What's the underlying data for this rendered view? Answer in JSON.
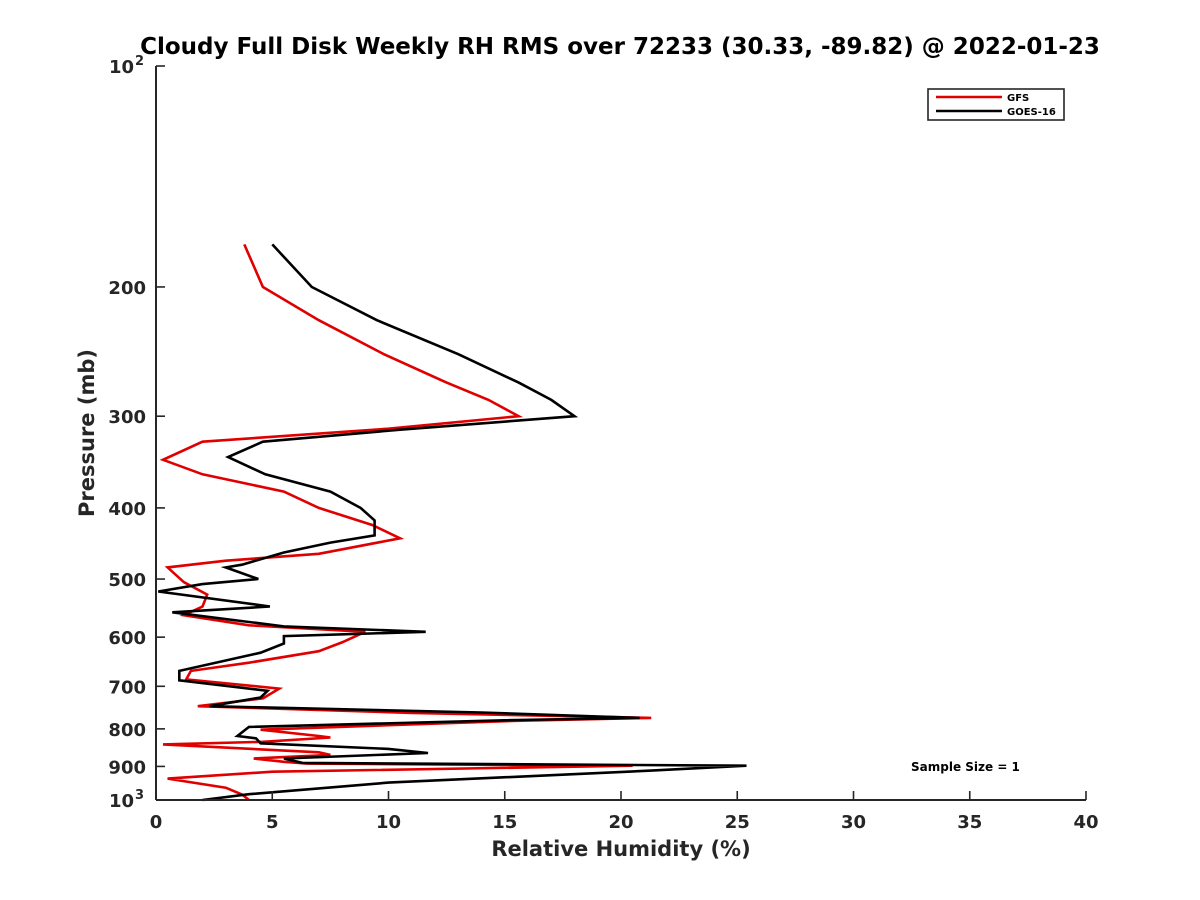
{
  "chart_data": {
    "type": "line",
    "title": "Cloudy Full Disk Weekly RH RMS over 72233 (30.33, -89.82) @ 2022-01-23",
    "xlabel": "Relative Humidity (%)",
    "ylabel": "Pressure (mb)",
    "xlim": [
      0,
      40
    ],
    "ylim": [
      100,
      1000
    ],
    "yscale": "log",
    "y_reversed": true,
    "x_ticks": [
      0,
      5,
      10,
      15,
      20,
      25,
      30,
      35,
      40
    ],
    "x_tick_labels": [
      "0",
      "5",
      "10",
      "15",
      "20",
      "25",
      "30",
      "35",
      "40"
    ],
    "y_ticks": [
      200,
      300,
      400,
      500,
      600,
      700,
      800,
      900
    ],
    "y_tick_labels": [
      "200",
      "300",
      "400",
      "500",
      "600",
      "700",
      "800",
      "900"
    ],
    "y_tick_top": {
      "base": "10",
      "exp": "2",
      "value": 100
    },
    "y_tick_bottom": {
      "base": "10",
      "exp": "3",
      "value": 1000
    },
    "grid": false,
    "legend_position": "top-right",
    "annotation": "Sample Size = 1",
    "series": [
      {
        "name": "GFS",
        "color": "#e00000",
        "points": [
          [
            3.8,
            175
          ],
          [
            4.6,
            200
          ],
          [
            7.0,
            222
          ],
          [
            9.8,
            247
          ],
          [
            12.5,
            270
          ],
          [
            14.3,
            285
          ],
          [
            15.6,
            300
          ],
          [
            10.0,
            312
          ],
          [
            2.0,
            325
          ],
          [
            0.3,
            344
          ],
          [
            2.0,
            360
          ],
          [
            5.5,
            380
          ],
          [
            7.0,
            400
          ],
          [
            9.3,
            422
          ],
          [
            10.5,
            440
          ],
          [
            7.0,
            462
          ],
          [
            3.0,
            472
          ],
          [
            0.5,
            482
          ],
          [
            1.2,
            505
          ],
          [
            2.2,
            525
          ],
          [
            2.0,
            545
          ],
          [
            1.2,
            560
          ],
          [
            4.0,
            578
          ],
          [
            9.0,
            590
          ],
          [
            8.0,
            610
          ],
          [
            7.0,
            627
          ],
          [
            4.0,
            650
          ],
          [
            1.5,
            667
          ],
          [
            1.3,
            685
          ],
          [
            5.3,
            705
          ],
          [
            4.6,
            727
          ],
          [
            1.8,
            745
          ],
          [
            11.0,
            761
          ],
          [
            21.3,
            773
          ],
          [
            15.5,
            780
          ],
          [
            4.5,
            802
          ],
          [
            7.0,
            818
          ],
          [
            7.5,
            822
          ],
          [
            4.6,
            833
          ],
          [
            0.3,
            840
          ],
          [
            7.0,
            861
          ],
          [
            7.5,
            868
          ],
          [
            4.2,
            878
          ],
          [
            5.5,
            887
          ],
          [
            6.5,
            892
          ],
          [
            20.5,
            898
          ],
          [
            5.0,
            915
          ],
          [
            0.5,
            935
          ],
          [
            3.0,
            962
          ],
          [
            3.7,
            983
          ],
          [
            4.0,
            1000
          ]
        ]
      },
      {
        "name": "GOES-16",
        "color": "#000000",
        "points": [
          [
            5.0,
            175
          ],
          [
            6.7,
            200
          ],
          [
            9.5,
            222
          ],
          [
            13.0,
            247
          ],
          [
            15.6,
            270
          ],
          [
            17.0,
            285
          ],
          [
            18.0,
            300
          ],
          [
            10.5,
            313
          ],
          [
            4.6,
            325
          ],
          [
            3.1,
            341
          ],
          [
            4.7,
            360
          ],
          [
            7.5,
            380
          ],
          [
            8.8,
            400
          ],
          [
            9.4,
            416
          ],
          [
            9.4,
            436
          ],
          [
            7.5,
            446
          ],
          [
            5.5,
            460
          ],
          [
            3.7,
            478
          ],
          [
            3.0,
            482
          ],
          [
            4.4,
            500
          ],
          [
            2.0,
            508
          ],
          [
            0.1,
            520
          ],
          [
            4.9,
            545
          ],
          [
            0.7,
            555
          ],
          [
            5.5,
            580
          ],
          [
            11.6,
            590
          ],
          [
            5.5,
            598
          ],
          [
            5.5,
            612
          ],
          [
            4.5,
            630
          ],
          [
            1.0,
            667
          ],
          [
            1.0,
            687
          ],
          [
            4.8,
            710
          ],
          [
            4.5,
            725
          ],
          [
            2.3,
            745
          ],
          [
            14.0,
            760
          ],
          [
            20.8,
            773
          ],
          [
            15.5,
            778
          ],
          [
            4.0,
            795
          ],
          [
            3.5,
            818
          ],
          [
            4.3,
            824
          ],
          [
            4.5,
            837
          ],
          [
            10.0,
            852
          ],
          [
            11.7,
            863
          ],
          [
            5.5,
            878
          ],
          [
            6.3,
            890
          ],
          [
            25.4,
            898
          ],
          [
            21.3,
            912
          ],
          [
            10.0,
            947
          ],
          [
            4.0,
            982
          ],
          [
            2.0,
            1000
          ]
        ]
      }
    ]
  }
}
